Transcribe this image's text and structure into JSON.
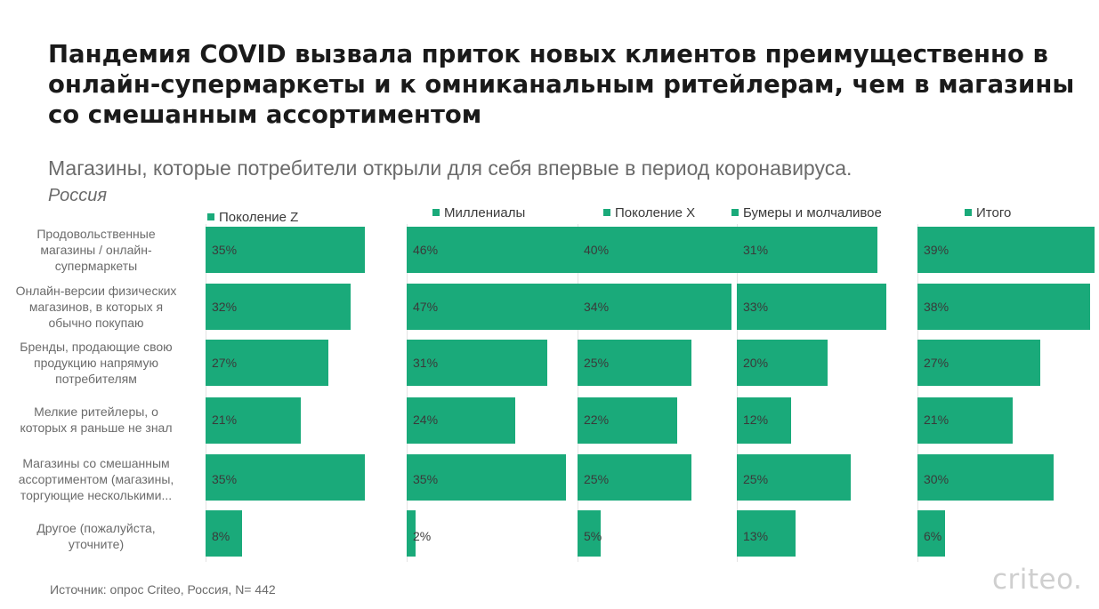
{
  "title": "Пандемия COVID вызвала приток новых клиентов преимущественно в онлайн-супермаркеты и к омниканальным ритейлерам, чем в магазины со смешанным ассортиментом",
  "subtitle": "Магазины, которые потребители открыли для себя впервые в период коронавируса.",
  "region": "Россия",
  "source": "Источник: опрос Criteo, Россия, N= 442",
  "logo": "criteo.",
  "colors": {
    "bar": "#1aaa7a",
    "text": "#6b6b6b",
    "title": "#1a1a1a"
  },
  "chart_data": {
    "type": "bar",
    "orientation": "horizontal",
    "unit": "%",
    "categories": [
      [
        "Продовольственные",
        "магазины / онлайн-",
        "супермаркеты"
      ],
      [
        "Онлайн-версии физических",
        "магазинов, в которых я",
        "обычно покупаю"
      ],
      [
        "Бренды, продающие свою",
        "продукцию напрямую",
        "потребителям"
      ],
      [
        "Мелкие ритейлеры, о",
        "которых я раньше не знал"
      ],
      [
        "Магазины со смешанным",
        "ассортиментом (магазины,",
        "торгующие несколькими..."
      ],
      [
        "Другое (пожалуйста,",
        "уточните)"
      ]
    ],
    "series": [
      {
        "name": "Поколение Z",
        "values": [
          35,
          32,
          27,
          21,
          35,
          8
        ]
      },
      {
        "name": "Миллениалы",
        "values": [
          46,
          47,
          31,
          24,
          35,
          2
        ]
      },
      {
        "name": "Поколение X",
        "values": [
          40,
          34,
          25,
          22,
          25,
          5
        ]
      },
      {
        "name": "Бумеры и молчаливое",
        "values": [
          31,
          33,
          20,
          12,
          25,
          13
        ]
      },
      {
        "name": "Итого",
        "values": [
          39,
          38,
          27,
          21,
          30,
          6
        ]
      }
    ]
  }
}
